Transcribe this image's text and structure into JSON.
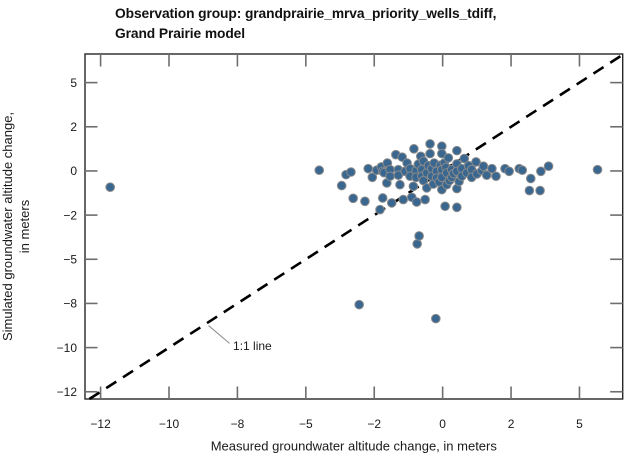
{
  "header": {
    "title_line1": "Observation group: grandprairie_mrva_priority_wells_tdiff,",
    "title_line2": "Grand Prairie model"
  },
  "chart_data": {
    "type": "scatter",
    "title": "Observation group: grandprairie_mrva_priority_wells_tdiff, Grand Prairie model",
    "xlabel": "Measured groundwater altitude change, in meters",
    "ylabel_line1": "Simulated groundwater altitude change,",
    "ylabel_line2": "in meters",
    "xlim": [
      -13.07,
      6.58
    ],
    "ylim": [
      -12.91,
      6.62
    ],
    "grid": false,
    "legend": "none",
    "x_tick_values": [
      -12.5,
      -10,
      -7.5,
      -5,
      -2.5,
      0,
      2.5,
      5
    ],
    "x_tick_labels": [
      "−12",
      "−10",
      "−8",
      "−5",
      "−2",
      "0",
      "2",
      "5"
    ],
    "y_tick_values": [
      5,
      2.5,
      0,
      -2.5,
      -5,
      -7.5,
      -10,
      -12.5
    ],
    "y_tick_labels": [
      "5",
      "2",
      "0",
      "−2",
      "−5",
      "−8",
      "−10",
      "−12"
    ],
    "reference_line": {
      "name": "1:1 line",
      "equation": "y = x",
      "from": -12.91,
      "to": 6.58,
      "dashed": true
    },
    "annotation": {
      "text": "1:1 line",
      "attach": [
        -8.6,
        -8.6
      ],
      "text_pos": [
        -7.66,
        -10.13
      ]
    },
    "colors": {
      "marker_fill": "#3A6790",
      "marker_edge": "#8A8A8A",
      "reference_line": "#000000",
      "spine": "#262626",
      "tick": "#6E6E6E",
      "leader": "#8C8C8C",
      "text": "#1A1A1A"
    },
    "series": [
      {
        "name": "grandprairie_mrva_priority_wells_tdiff",
        "marker": "circle",
        "points": [
          [
            -12.15,
            -0.92
          ],
          [
            -4.51,
            0.04
          ],
          [
            -3.69,
            -0.83
          ],
          [
            -3.53,
            -0.21
          ],
          [
            -3.35,
            -0.06
          ],
          [
            -3.27,
            -1.55
          ],
          [
            -3.05,
            -7.57
          ],
          [
            -2.84,
            -1.72
          ],
          [
            -2.72,
            0.13
          ],
          [
            -2.57,
            -0.36
          ],
          [
            -2.41,
            0.04
          ],
          [
            -2.29,
            -2.19
          ],
          [
            -2.24,
            0.23
          ],
          [
            -2.19,
            -0.02
          ],
          [
            -2.19,
            -1.53
          ],
          [
            -2.14,
            -0.1
          ],
          [
            -2.04,
            -0.68
          ],
          [
            -2.02,
            0.45
          ],
          [
            -1.92,
            0.07
          ],
          [
            -1.92,
            -0.3
          ],
          [
            -1.86,
            -1.81
          ],
          [
            -1.71,
            0.92
          ],
          [
            -1.62,
            0.07
          ],
          [
            -1.62,
            -0.24
          ],
          [
            -1.56,
            -0.78
          ],
          [
            -1.48,
            0.78
          ],
          [
            -1.44,
            -1.62
          ],
          [
            -1.37,
            -0.02
          ],
          [
            -1.3,
            0.45
          ],
          [
            -1.19,
            0.13
          ],
          [
            -1.19,
            -0.3
          ],
          [
            -1.13,
            -1.49
          ],
          [
            -1.07,
            -0.87
          ],
          [
            -1.05,
            1.25
          ],
          [
            -0.97,
            0.02
          ],
          [
            -0.97,
            -0.36
          ],
          [
            -0.95,
            -1.76
          ],
          [
            -0.93,
            -4.13
          ],
          [
            -0.89,
            0.38
          ],
          [
            -0.86,
            -3.68
          ],
          [
            -0.8,
            0.83
          ],
          [
            -0.76,
            0.07
          ],
          [
            -0.76,
            -0.3
          ],
          [
            -0.7,
            0.55
          ],
          [
            -0.7,
            -0.55
          ],
          [
            -0.64,
            -1.62
          ],
          [
            -0.58,
            -0.11
          ],
          [
            -0.58,
            -0.96
          ],
          [
            -0.52,
            0.3
          ],
          [
            -0.46,
            1.53
          ],
          [
            -0.46,
            0.98
          ],
          [
            -0.4,
            0.13
          ],
          [
            -0.4,
            -0.3
          ],
          [
            -0.34,
            -0.74
          ],
          [
            -0.31,
            0.45
          ],
          [
            -0.25,
            -8.36
          ],
          [
            -0.22,
            -0.02
          ],
          [
            -0.22,
            -0.4
          ],
          [
            -0.13,
            -0.62
          ],
          [
            -0.08,
            0.33
          ],
          [
            -0.03,
            1.4
          ],
          [
            -0.03,
            0.98
          ],
          [
            -0.03,
            0.07
          ],
          [
            -0.03,
            -0.36
          ],
          [
            -0.03,
            -1.06
          ],
          [
            0.06,
            0.45
          ],
          [
            0.09,
            -2.0
          ],
          [
            0.12,
            0.2
          ],
          [
            0.15,
            -0.11
          ],
          [
            0.15,
            -0.78
          ],
          [
            0.21,
            0.74
          ],
          [
            0.25,
            -0.55
          ],
          [
            0.33,
            0.07
          ],
          [
            0.33,
            -0.36
          ],
          [
            0.4,
            -0.15
          ],
          [
            0.52,
            1.15
          ],
          [
            0.52,
            0.4
          ],
          [
            0.52,
            -0.02
          ],
          [
            0.52,
            -1.0
          ],
          [
            0.52,
            -2.06
          ],
          [
            0.6,
            -0.6
          ],
          [
            0.7,
            0.13
          ],
          [
            0.7,
            -0.3
          ],
          [
            0.79,
            0.7
          ],
          [
            0.88,
            -0.11
          ],
          [
            0.95,
            0.3
          ],
          [
            1.06,
            0.07
          ],
          [
            1.06,
            -0.36
          ],
          [
            1.22,
            0.51
          ],
          [
            1.25,
            -0.17
          ],
          [
            1.43,
            0.02
          ],
          [
            1.49,
            0.27
          ],
          [
            1.61,
            -0.24
          ],
          [
            1.8,
            0.13
          ],
          [
            1.95,
            -0.3
          ],
          [
            2.28,
            0.13
          ],
          [
            2.43,
            -0.02
          ],
          [
            2.8,
            0.13
          ],
          [
            2.91,
            0.04
          ],
          [
            3.17,
            -1.11
          ],
          [
            3.22,
            -0.43
          ],
          [
            3.56,
            -1.11
          ],
          [
            3.59,
            -0.02
          ],
          [
            3.87,
            0.27
          ],
          [
            5.66,
            0.07
          ]
        ]
      }
    ]
  }
}
